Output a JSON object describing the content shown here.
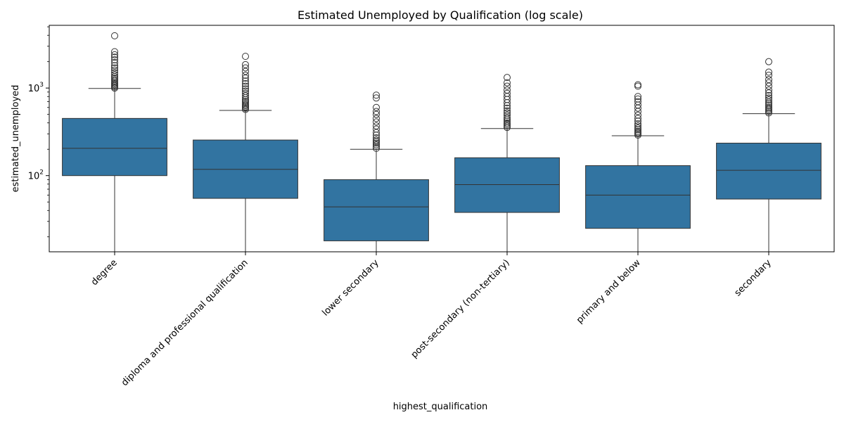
{
  "chart_data": {
    "type": "box",
    "title": "Estimated Unemployed by Qualification (log scale)",
    "xlabel": "highest_qualification",
    "ylabel": "estimated_unemployed",
    "yscale": "log",
    "ylim": [
      13.5,
      5200
    ],
    "yticks": [
      {
        "value": 100,
        "base": "10",
        "exp": "2"
      },
      {
        "value": 1000,
        "base": "10",
        "exp": "3"
      }
    ],
    "box_color": "#3274a1",
    "line_color": "#333333",
    "categories": [
      "degree",
      "diploma and professional qualification",
      "lower secondary",
      "post-secondary (non-tertiary)",
      "primary and below",
      "secondary"
    ],
    "boxes": [
      {
        "whisker_low": 13,
        "q1": 100,
        "median": 205,
        "q3": 450,
        "whisker_high": 990,
        "outliers": [
          1000,
          1030,
          1060,
          1090,
          1120,
          1150,
          1200,
          1250,
          1300,
          1350,
          1420,
          1500,
          1600,
          1700,
          1800,
          1950,
          2100,
          2250,
          2400,
          2600,
          3950
        ]
      },
      {
        "whisker_low": 13,
        "q1": 55,
        "median": 118,
        "q3": 255,
        "whisker_high": 555,
        "outliers": [
          570,
          590,
          610,
          630,
          650,
          680,
          710,
          740,
          780,
          820,
          870,
          920,
          980,
          1050,
          1120,
          1200,
          1300,
          1400,
          1550,
          1700,
          1850,
          2300
        ]
      },
      {
        "whisker_low": 13,
        "q1": 18,
        "median": 44,
        "q3": 90,
        "whisker_high": 200,
        "outliers": [
          205,
          215,
          225,
          235,
          245,
          255,
          270,
          290,
          310,
          340,
          370,
          410,
          450,
          500,
          540,
          600,
          770,
          830
        ]
      },
      {
        "whisker_low": 13,
        "q1": 38,
        "median": 79,
        "q3": 160,
        "whisker_high": 345,
        "outliers": [
          355,
          370,
          385,
          400,
          420,
          440,
          460,
          490,
          520,
          550,
          590,
          630,
          680,
          740,
          800,
          870,
          950,
          1050,
          1150,
          1320
        ]
      },
      {
        "whisker_low": 13,
        "q1": 25,
        "median": 60,
        "q3": 130,
        "whisker_high": 285,
        "outliers": [
          290,
          300,
          310,
          320,
          335,
          350,
          370,
          390,
          420,
          450,
          490,
          540,
          590,
          640,
          700,
          750,
          800,
          1050,
          1090
        ]
      },
      {
        "whisker_low": 13,
        "q1": 54,
        "median": 115,
        "q3": 235,
        "whisker_high": 510,
        "outliers": [
          520,
          540,
          560,
          580,
          600,
          630,
          660,
          690,
          730,
          770,
          820,
          880,
          950,
          1050,
          1150,
          1250,
          1400,
          1520,
          2000
        ]
      }
    ]
  }
}
